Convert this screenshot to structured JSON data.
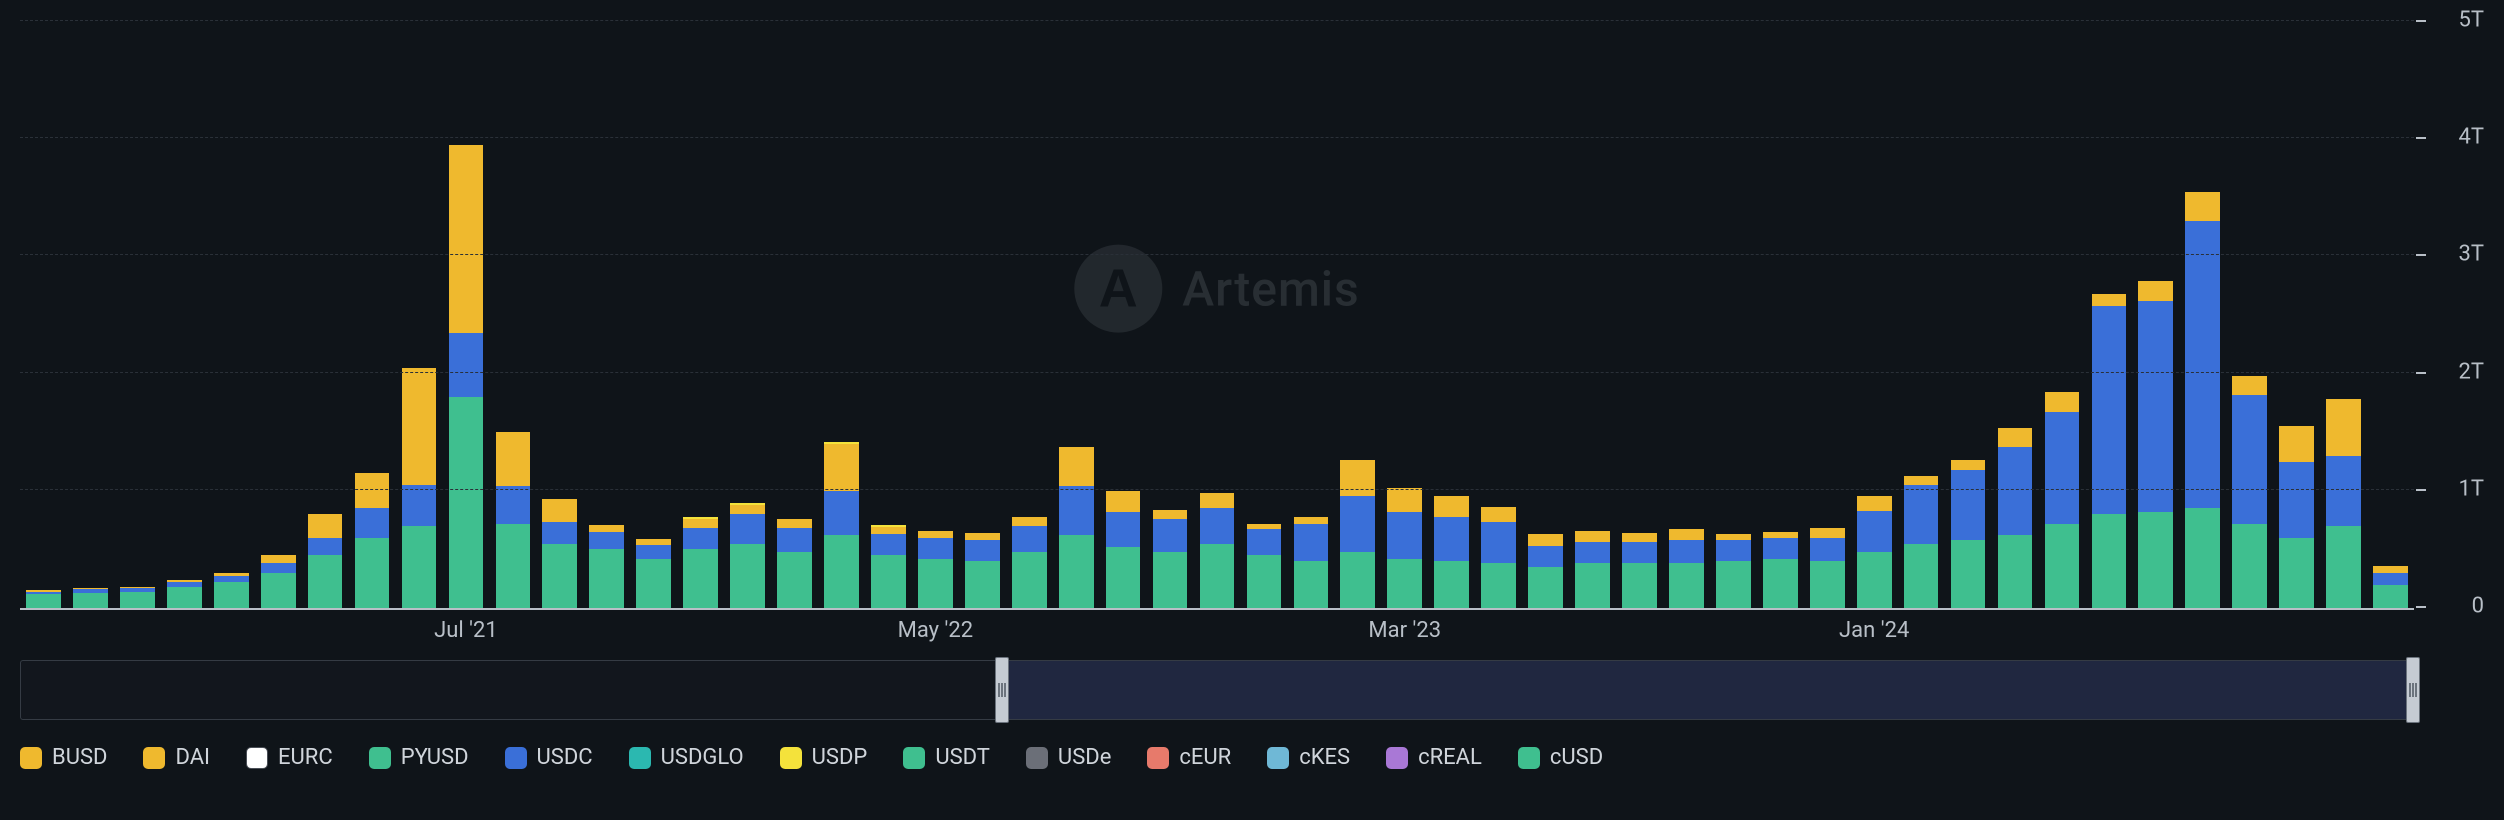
{
  "watermark": {
    "text": "Artemis",
    "glyph": "A"
  },
  "chart": {
    "type": "stacked-bar",
    "background_color": "#0f1419",
    "grid_color": "#2a3038",
    "axis_color": "#b8bfc7",
    "text_color": "#b8bfc7",
    "label_fontsize": 22,
    "ylim": [
      0,
      5.0
    ],
    "y_unit_suffix": "T",
    "y_ticks": [
      0,
      1,
      2,
      3,
      4,
      5
    ],
    "y_tick_labels": [
      "0",
      "1T",
      "2T",
      "3T",
      "4T",
      "5T"
    ],
    "x_labels": [
      {
        "label": "Jul '21",
        "index": 9
      },
      {
        "label": "May '22",
        "index": 19
      },
      {
        "label": "Mar '23",
        "index": 29
      },
      {
        "label": "Jan '24",
        "index": 39
      }
    ],
    "bar_width_ratio": 0.74,
    "series_colors": {
      "BUSD": "#efb92e",
      "DAI": "#efb92e",
      "EURC": "#ffffff",
      "PYUSD": "#3fbf8f",
      "USDC": "#3a6fd8",
      "USDGLO": "#2bb8b0",
      "USDP": "#f4e23b",
      "USDT": "#3fbf8f",
      "USDe": "#6b6f78",
      "cEUR": "#e77a6b",
      "cKES": "#6fb8d6",
      "cREAL": "#a978d6",
      "cUSD": "#3fbf8f"
    },
    "stack_order": [
      "USDT",
      "USDC",
      "DAI",
      "BUSD",
      "USDP",
      "USDe",
      "PYUSD",
      "cUSD",
      "EURC",
      "USDGLO",
      "cEUR",
      "cKES",
      "cREAL"
    ],
    "data": [
      {
        "USDT": 0.12,
        "USDC": 0.02,
        "DAI": 0.01
      },
      {
        "USDT": 0.13,
        "USDC": 0.03,
        "DAI": 0.01
      },
      {
        "USDT": 0.14,
        "USDC": 0.03,
        "DAI": 0.01
      },
      {
        "USDT": 0.18,
        "USDC": 0.04,
        "DAI": 0.02
      },
      {
        "USDT": 0.22,
        "USDC": 0.05,
        "DAI": 0.03
      },
      {
        "USDT": 0.3,
        "USDC": 0.08,
        "DAI": 0.07
      },
      {
        "USDT": 0.45,
        "USDC": 0.15,
        "DAI": 0.1,
        "BUSD": 0.1
      },
      {
        "USDT": 0.6,
        "USDC": 0.25,
        "DAI": 0.15,
        "BUSD": 0.15
      },
      {
        "USDT": 0.7,
        "USDC": 0.35,
        "DAI": 0.3,
        "BUSD": 0.7
      },
      {
        "USDT": 1.8,
        "USDC": 0.55,
        "DAI": 0.25,
        "BUSD": 1.35
      },
      {
        "USDT": 0.72,
        "USDC": 0.32,
        "DAI": 0.18,
        "BUSD": 0.28
      },
      {
        "USDT": 0.55,
        "USDC": 0.18,
        "DAI": 0.1,
        "BUSD": 0.1
      },
      {
        "USDT": 0.5,
        "USDC": 0.15,
        "DAI": 0.06
      },
      {
        "USDT": 0.42,
        "USDC": 0.12,
        "DAI": 0.05
      },
      {
        "USDT": 0.5,
        "USDC": 0.18,
        "DAI": 0.08,
        "USDP": 0.02
      },
      {
        "USDT": 0.55,
        "USDC": 0.25,
        "DAI": 0.08,
        "USDP": 0.02
      },
      {
        "USDT": 0.48,
        "USDC": 0.2,
        "DAI": 0.08
      },
      {
        "USDT": 0.62,
        "USDC": 0.38,
        "DAI": 0.2,
        "BUSD": 0.2,
        "USDP": 0.02
      },
      {
        "USDT": 0.45,
        "USDC": 0.18,
        "DAI": 0.06,
        "USDP": 0.02
      },
      {
        "USDT": 0.42,
        "USDC": 0.18,
        "DAI": 0.06
      },
      {
        "USDT": 0.4,
        "USDC": 0.18,
        "DAI": 0.06
      },
      {
        "USDT": 0.48,
        "USDC": 0.22,
        "DAI": 0.08
      },
      {
        "USDT": 0.62,
        "USDC": 0.42,
        "DAI": 0.18,
        "BUSD": 0.15
      },
      {
        "USDT": 0.52,
        "USDC": 0.3,
        "DAI": 0.1,
        "BUSD": 0.08
      },
      {
        "USDT": 0.48,
        "USDC": 0.28,
        "DAI": 0.08
      },
      {
        "USDT": 0.55,
        "USDC": 0.3,
        "DAI": 0.08,
        "BUSD": 0.05
      },
      {
        "USDT": 0.45,
        "USDC": 0.22,
        "DAI": 0.05
      },
      {
        "USDT": 0.4,
        "USDC": 0.32,
        "DAI": 0.06
      },
      {
        "USDT": 0.48,
        "USDC": 0.48,
        "DAI": 0.15,
        "BUSD": 0.15
      },
      {
        "USDT": 0.42,
        "USDC": 0.4,
        "DAI": 0.1,
        "BUSD": 0.1
      },
      {
        "USDT": 0.4,
        "USDC": 0.38,
        "DAI": 0.1,
        "BUSD": 0.08
      },
      {
        "USDT": 0.38,
        "USDC": 0.35,
        "DAI": 0.08,
        "BUSD": 0.05
      },
      {
        "USDT": 0.35,
        "USDC": 0.18,
        "DAI": 0.06,
        "BUSD": 0.04
      },
      {
        "USDT": 0.38,
        "USDC": 0.18,
        "DAI": 0.06,
        "BUSD": 0.04
      },
      {
        "USDT": 0.38,
        "USDC": 0.18,
        "DAI": 0.05,
        "BUSD": 0.03
      },
      {
        "USDT": 0.38,
        "USDC": 0.2,
        "DAI": 0.06,
        "BUSD": 0.03
      },
      {
        "USDT": 0.4,
        "USDC": 0.18,
        "DAI": 0.05
      },
      {
        "USDT": 0.42,
        "USDC": 0.18,
        "DAI": 0.05
      },
      {
        "USDT": 0.4,
        "USDC": 0.2,
        "DAI": 0.06,
        "BUSD": 0.02
      },
      {
        "USDT": 0.48,
        "USDC": 0.35,
        "DAI": 0.1,
        "BUSD": 0.03
      },
      {
        "USDT": 0.55,
        "USDC": 0.5,
        "DAI": 0.08
      },
      {
        "USDT": 0.58,
        "USDC": 0.6,
        "DAI": 0.08
      },
      {
        "USDT": 0.62,
        "USDC": 0.75,
        "DAI": 0.12,
        "BUSD": 0.05
      },
      {
        "USDT": 0.72,
        "USDC": 0.95,
        "DAI": 0.12,
        "BUSD": 0.05
      },
      {
        "USDT": 0.8,
        "USDC": 1.78,
        "DAI": 0.1
      },
      {
        "USDT": 0.82,
        "USDC": 1.8,
        "DAI": 0.12,
        "BUSD": 0.05
      },
      {
        "USDT": 0.85,
        "USDC": 2.45,
        "DAI": 0.15,
        "BUSD": 0.1
      },
      {
        "USDT": 0.72,
        "USDC": 1.1,
        "DAI": 0.1,
        "BUSD": 0.06
      },
      {
        "USDT": 0.6,
        "USDC": 0.65,
        "DAI": 0.25,
        "BUSD": 0.05
      },
      {
        "USDT": 0.7,
        "USDC": 0.6,
        "DAI": 0.4,
        "BUSD": 0.08
      },
      {
        "USDT": 0.2,
        "USDC": 0.1,
        "DAI": 0.06
      }
    ]
  },
  "range_selector": {
    "selected_start_ratio": 0.41,
    "selected_end_ratio": 1.0,
    "bg": "#12161d",
    "selected_bg": "#2a3458",
    "handle_color": "#c5cbd3"
  },
  "legend": {
    "items": [
      {
        "key": "BUSD",
        "label": "BUSD"
      },
      {
        "key": "DAI",
        "label": "DAI"
      },
      {
        "key": "EURC",
        "label": "EURC"
      },
      {
        "key": "PYUSD",
        "label": "PYUSD"
      },
      {
        "key": "USDC",
        "label": "USDC"
      },
      {
        "key": "USDGLO",
        "label": "USDGLO"
      },
      {
        "key": "USDP",
        "label": "USDP"
      },
      {
        "key": "USDT",
        "label": "USDT"
      },
      {
        "key": "USDe",
        "label": "USDe"
      },
      {
        "key": "cEUR",
        "label": "cEUR"
      },
      {
        "key": "cKES",
        "label": "cKES"
      },
      {
        "key": "cREAL",
        "label": "cREAL"
      },
      {
        "key": "cUSD",
        "label": "cUSD"
      }
    ]
  }
}
